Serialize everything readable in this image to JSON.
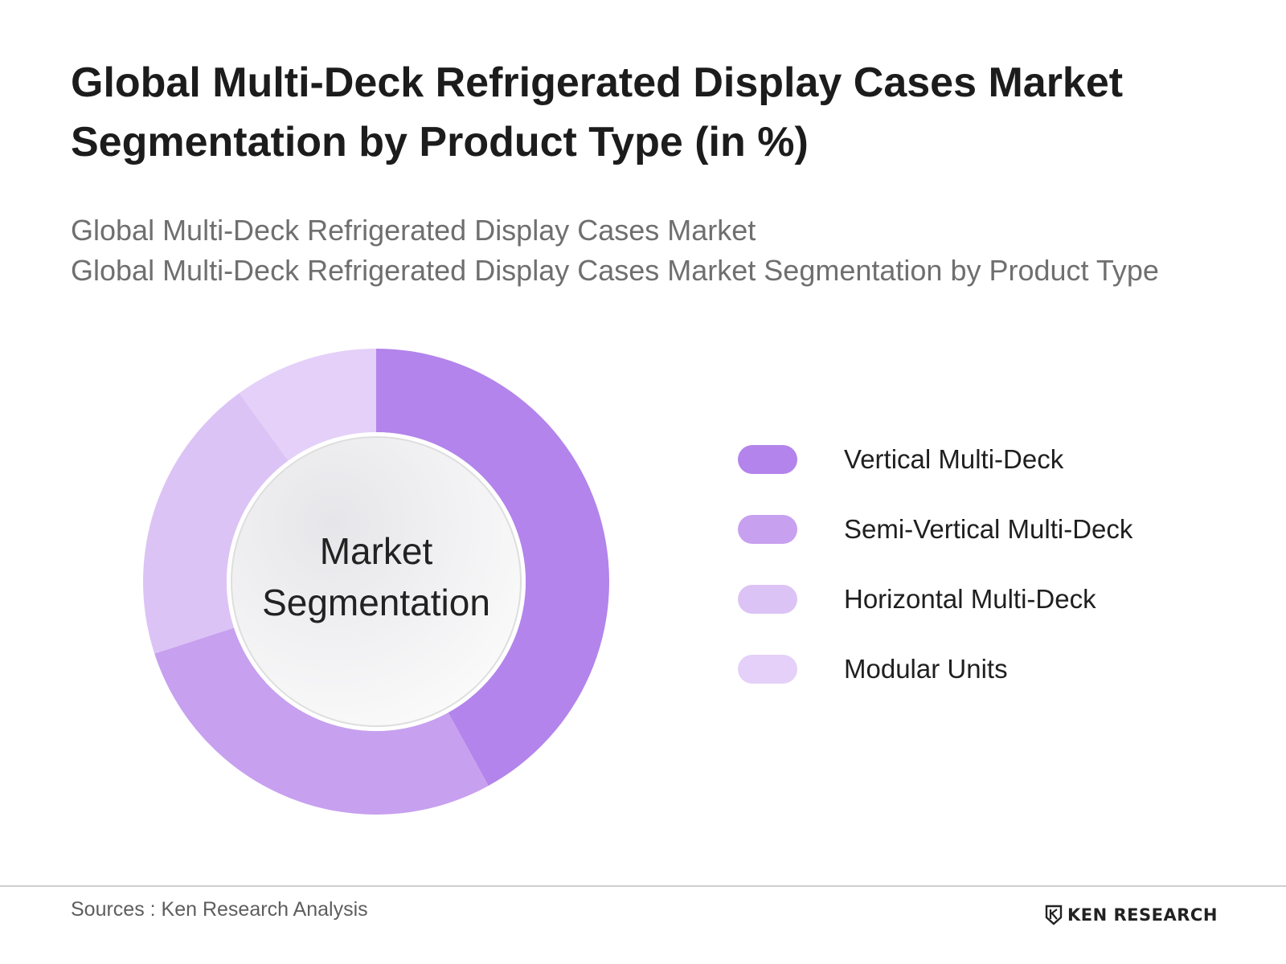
{
  "title": "Global Multi-Deck Refrigerated Display Cases Market Segmentation by Product Type (in %)",
  "subtitle_lines": [
    "Global Multi-Deck Refrigerated Display Cases Market",
    "Global Multi-Deck Refrigerated Display Cases Market Segmentation by Product Type"
  ],
  "center_label": [
    "Market",
    "Segmentation"
  ],
  "footer": {
    "sources": "Sources : Ken Research Analysis",
    "brand": "KEN RESEARCH"
  },
  "chart_data": {
    "type": "pie",
    "style": "donut",
    "title": "Global Multi-Deck Refrigerated Display Cases Market Segmentation by Product Type (in %)",
    "categories": [
      "Vertical Multi-Deck",
      "Semi-Vertical Multi-Deck",
      "Horizontal Multi-Deck",
      "Modular Units"
    ],
    "values": [
      42,
      28,
      20,
      10
    ],
    "colors": [
      "#b384eb",
      "#c7a0ef",
      "#dcc3f5",
      "#e4d0f8"
    ],
    "legend": "right"
  }
}
